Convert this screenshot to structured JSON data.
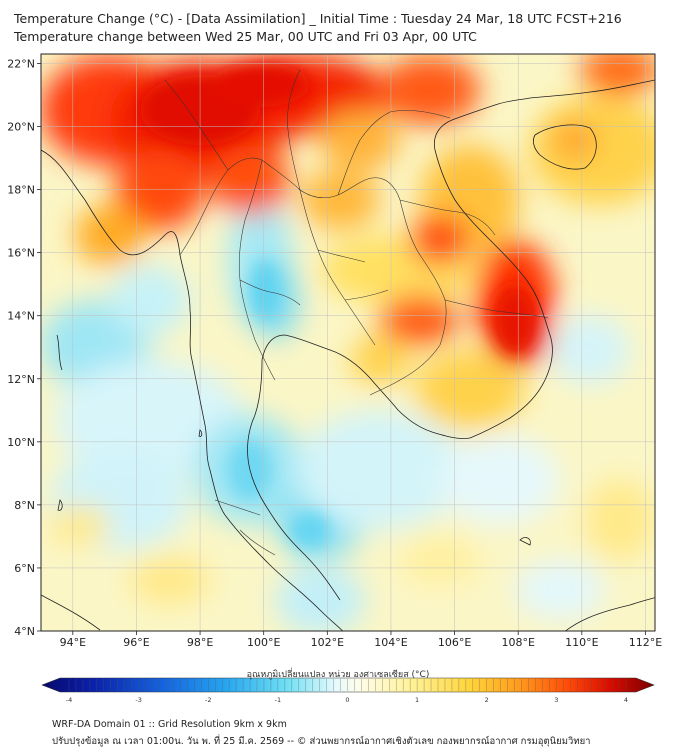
{
  "header": {
    "title": "Temperature Change (°C) - [Data Assimilation] _ Initial Time : Tuesday 24 Mar, 18 UTC FCST+216",
    "subtitle": "Temperature change between Wed 25 Mar, 00 UTC and Fri 03 Apr, 00 UTC"
  },
  "map": {
    "lat_labels": [
      "22°N",
      "20°N",
      "18°N",
      "16°N",
      "14°N",
      "12°N",
      "10°N",
      "8°N",
      "6°N",
      "4°N"
    ],
    "lon_labels": [
      "94°E",
      "96°E",
      "98°E",
      "100°E",
      "102°E",
      "104°E",
      "106°E",
      "108°E",
      "110°E",
      "112°E"
    ],
    "lat_range": [
      4,
      22.3
    ],
    "lon_range": [
      93,
      112.3
    ]
  },
  "colorbar": {
    "label": "อุณหภูมิเปลี่ยนแปลง หน่วย องศาเซลเซียส (°C)",
    "ticks": [
      "-4",
      "-3",
      "-2",
      "-1",
      "0",
      "1",
      "2",
      "3",
      "4"
    ],
    "min": -4,
    "max": 4,
    "colors": [
      "#08086b",
      "#0a2bb8",
      "#1565e0",
      "#27a6f0",
      "#45d6f0",
      "#b9f0f8",
      "#ffffff",
      "#fffaa8",
      "#ffe74a",
      "#ffb61c",
      "#ff6a0a",
      "#e80d00",
      "#7a0000"
    ]
  },
  "footer": {
    "line1": "WRF-DA Domain 01 :: Grid Resolution 9km x 9km",
    "line2": "ปรับปรุงข้อมูล ณ เวลา 01:00น. วัน พ. ที่ 25 มี.ค. 2569 -- © ส่วนพยากรณ์อากาศเชิงตัวเลข กองพยากรณ์อากาศ กรมอุตุนิยมวิทยา"
  }
}
